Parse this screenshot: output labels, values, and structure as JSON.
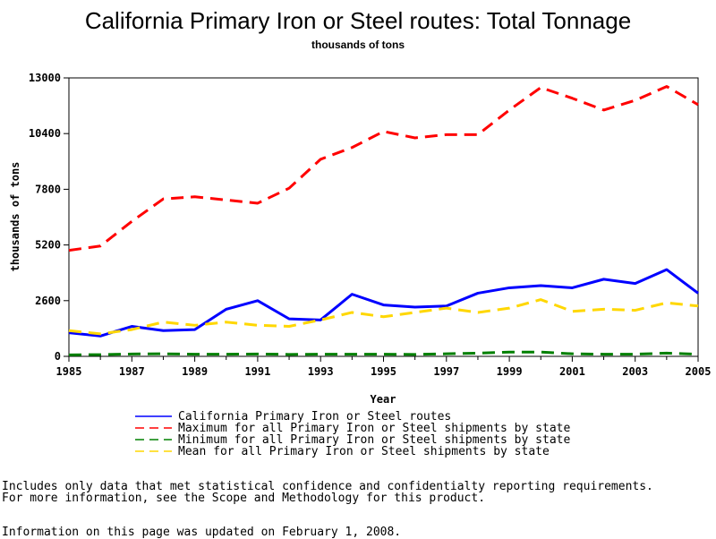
{
  "chart_data": {
    "type": "line",
    "title": "California Primary Iron or Steel routes: Total Tonnage",
    "subtitle": "thousands of tons",
    "xlabel": "Year",
    "ylabel": "thousands of tons",
    "xlim": [
      1985,
      2005
    ],
    "ylim": [
      0,
      13000
    ],
    "x_ticks": [
      "1985",
      "1987",
      "1989",
      "1991",
      "1993",
      "1995",
      "1997",
      "1999",
      "2001",
      "2003",
      "2005"
    ],
    "y_ticks": [
      "0",
      "2600",
      "5200",
      "7800",
      "10400",
      "13000"
    ],
    "x": [
      1985,
      1986,
      1987,
      1988,
      1989,
      1990,
      1991,
      1992,
      1993,
      1994,
      1995,
      1996,
      1997,
      1998,
      1999,
      2000,
      2001,
      2002,
      2003,
      2004,
      2005
    ],
    "series": [
      {
        "name": "California Primary Iron or Steel routes",
        "color": "#0000ff",
        "style": "solid",
        "values": [
          1100,
          950,
          1400,
          1200,
          1250,
          2200,
          2600,
          1750,
          1700,
          2900,
          2400,
          2300,
          2350,
          2950,
          3200,
          3300,
          3200,
          3600,
          3400,
          4050,
          2950
        ]
      },
      {
        "name": "Maximum for all Primary Iron or Steel shipments by state",
        "color": "#ff0000",
        "style": "dashed",
        "values": [
          4950,
          5150,
          6300,
          7350,
          7450,
          7300,
          7150,
          7850,
          9200,
          9750,
          10500,
          10200,
          10350,
          10350,
          11500,
          12550,
          12050,
          11500,
          11950,
          12600,
          11750
        ]
      },
      {
        "name": "Minimum for all Primary Iron or Steel shipments by state",
        "color": "#008000",
        "style": "dashed",
        "values": [
          70,
          80,
          110,
          120,
          100,
          100,
          110,
          90,
          100,
          100,
          100,
          90,
          120,
          150,
          200,
          200,
          120,
          100,
          100,
          150,
          100
        ]
      },
      {
        "name": "Mean for all Primary Iron or Steel shipments by state",
        "color": "#ffd700",
        "style": "dashed",
        "values": [
          1200,
          1050,
          1250,
          1600,
          1450,
          1600,
          1450,
          1400,
          1700,
          2050,
          1850,
          2050,
          2250,
          2050,
          2250,
          2650,
          2100,
          2200,
          2150,
          2500,
          2350
        ]
      }
    ],
    "grid": false,
    "legend_position": "bottom"
  },
  "notes": {
    "line1": "Includes only data that met statistical confidence and confidentialty reporting requirements.",
    "line2": "For more information, see the Scope and Methodology for this product.",
    "line3": "Information on this page was updated on February 1, 2008."
  }
}
